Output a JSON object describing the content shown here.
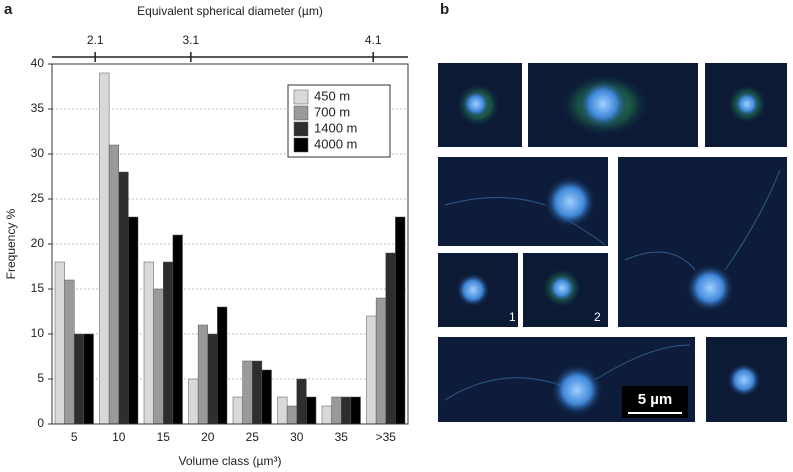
{
  "panel_labels": [
    "a",
    "b"
  ],
  "chart_data": {
    "type": "bar",
    "x2label": "Equivalent spherical diameter (µm)",
    "x2ticks": [
      2.1,
      3.1,
      4.1
    ],
    "ylabel": "Frequency %",
    "xlabel": "Volume class (µm³)",
    "categories": [
      "5",
      "10",
      "15",
      "20",
      "25",
      "30",
      "35",
      ">35"
    ],
    "series": [
      {
        "name": "450 m",
        "color": "#d9d9d9",
        "values": [
          18,
          39,
          18,
          5,
          3,
          3,
          2,
          12
        ]
      },
      {
        "name": "700 m",
        "color": "#9a9a9a",
        "values": [
          16,
          31,
          15,
          11,
          7,
          2,
          3,
          14
        ]
      },
      {
        "name": "1400 m",
        "color": "#2e2e2e",
        "values": [
          10,
          28,
          18,
          10,
          7,
          5,
          3,
          19
        ]
      },
      {
        "name": "4000 m",
        "color": "#000000",
        "values": [
          10,
          23,
          21,
          13,
          6,
          3,
          3,
          23
        ]
      }
    ],
    "ylim": [
      0,
      40
    ],
    "yticks": [
      0,
      5,
      10,
      15,
      20,
      25,
      30,
      35,
      40
    ],
    "grid": true,
    "legend": "upper right"
  },
  "micrographs": {
    "inset_labels": [
      "1",
      "2"
    ],
    "scale_bar": "5 µm"
  }
}
